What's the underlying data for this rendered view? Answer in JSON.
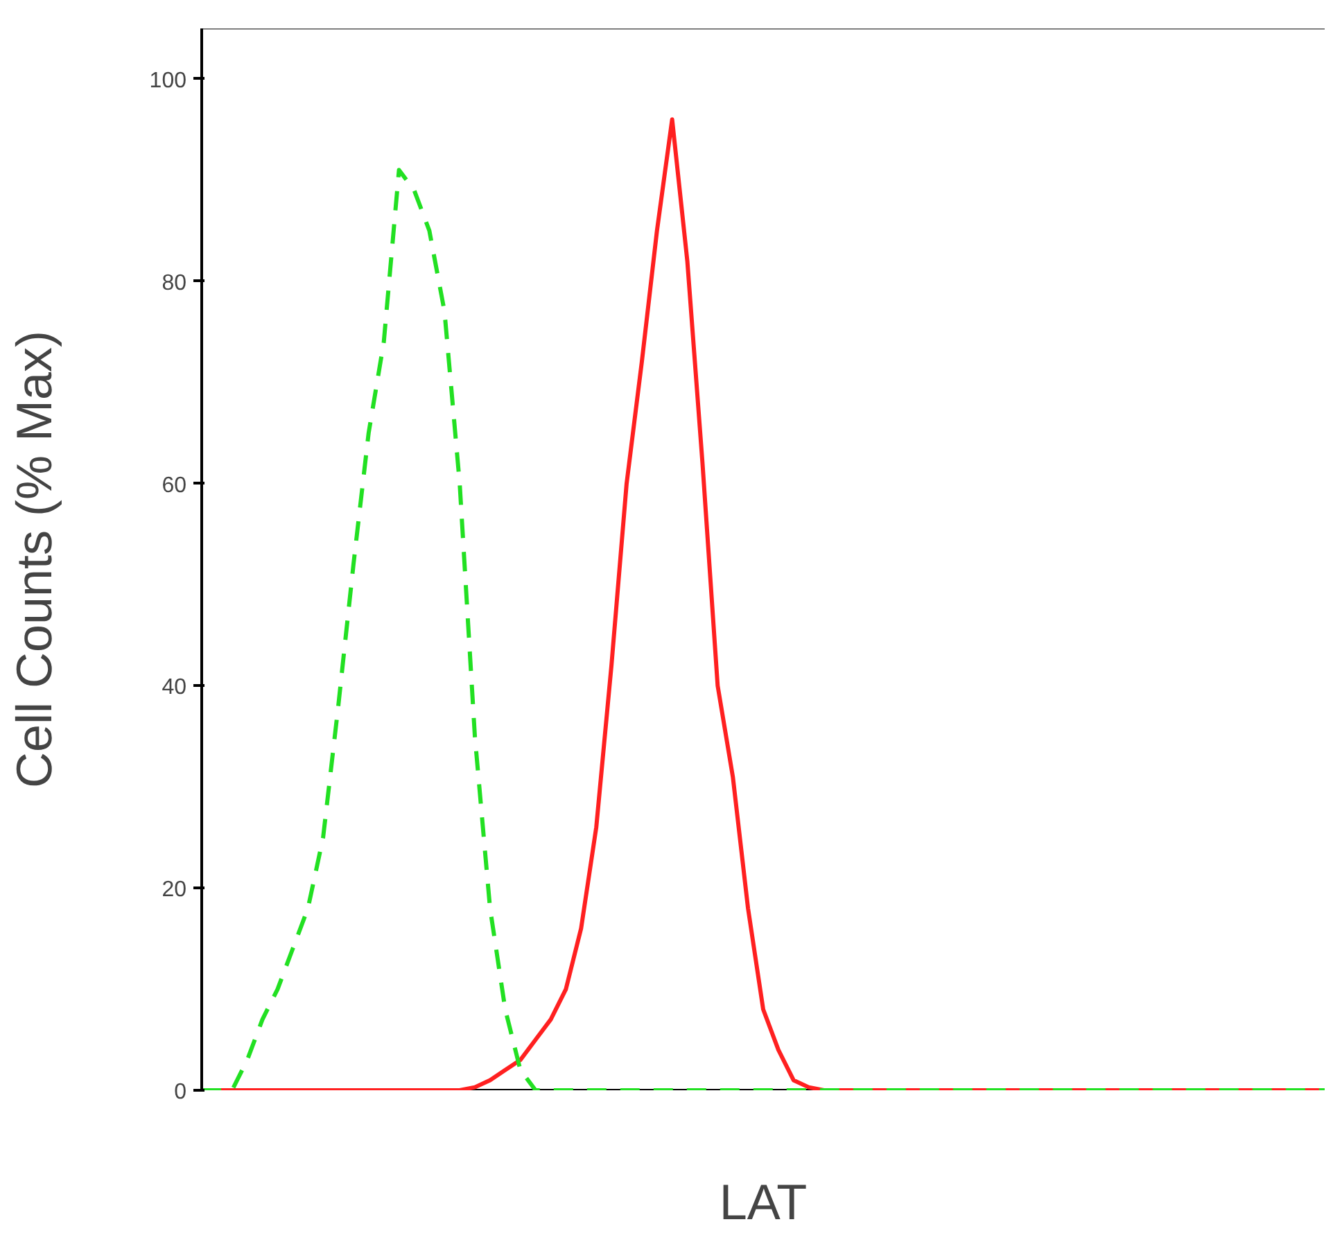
{
  "chart_data": {
    "type": "line",
    "xlabel": "LAT",
    "ylabel": "Cell Counts (% Max)",
    "categories": [
      null,
      null,
      null,
      null,
      null,
      null,
      null,
      null,
      null,
      null,
      null,
      null,
      null,
      null,
      null,
      null,
      null,
      null,
      null,
      null,
      null,
      null,
      null,
      null,
      null,
      null,
      null,
      null,
      null,
      null,
      null,
      null,
      null,
      null,
      null,
      null,
      null,
      null,
      null,
      null,
      null,
      null,
      null,
      null,
      null,
      null,
      null,
      null,
      null,
      null,
      null,
      null,
      null,
      null,
      null,
      null,
      null,
      null,
      null,
      null,
      null,
      null,
      null,
      null,
      null,
      null,
      null,
      null,
      null,
      null,
      null,
      null,
      null,
      null,
      null
    ],
    "series": [
      {
        "color": "#22e022",
        "line_style": "dashed",
        "values": [
          0,
          0,
          0,
          3,
          7,
          10,
          14,
          18,
          25,
          38,
          52,
          65,
          74,
          91,
          89,
          85,
          77,
          60,
          35,
          18,
          8,
          2,
          0,
          0,
          0,
          0,
          0,
          0,
          0,
          0,
          0,
          0,
          0,
          0,
          0,
          0,
          0,
          0,
          0,
          0,
          0,
          0,
          0,
          0,
          0,
          0,
          0,
          0,
          0,
          0,
          0,
          0,
          0,
          0,
          0,
          0,
          0,
          0,
          0,
          0,
          0,
          0,
          0,
          0,
          0,
          0,
          0,
          0,
          0,
          0,
          0,
          0,
          0,
          0,
          0
        ]
      },
      {
        "color": "#ff2020",
        "line_style": "solid",
        "values": [
          0,
          0,
          0,
          0,
          0,
          0,
          0,
          0,
          0,
          0,
          0,
          0,
          0,
          0,
          0,
          0,
          0,
          0,
          0.3,
          1,
          2,
          3,
          5,
          7,
          10,
          16,
          26,
          42,
          60,
          72,
          85,
          96,
          82,
          62,
          40,
          31,
          18,
          8,
          4,
          1,
          0.3,
          0,
          0,
          0,
          0,
          0,
          0,
          0,
          0,
          0,
          0,
          0,
          0,
          0,
          0,
          0,
          0,
          0,
          0,
          0,
          0,
          0,
          0,
          0,
          0,
          0,
          0,
          0,
          0,
          0,
          0,
          0,
          0,
          0,
          0
        ]
      }
    ],
    "ylim": [
      0,
      105
    ],
    "yticks": [
      0,
      20,
      40,
      60,
      80,
      100
    ],
    "tick_labels": "y",
    "grid": false
  }
}
